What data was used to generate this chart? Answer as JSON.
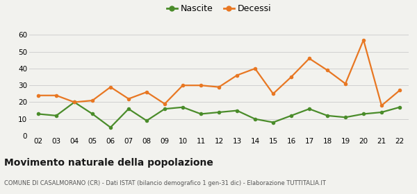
{
  "years": [
    "02",
    "03",
    "04",
    "05",
    "06",
    "07",
    "08",
    "09",
    "10",
    "11",
    "12",
    "13",
    "14",
    "15",
    "16",
    "17",
    "18",
    "19",
    "20",
    "21",
    "22"
  ],
  "nascite": [
    13,
    12,
    20,
    13,
    5,
    16,
    9,
    16,
    17,
    13,
    14,
    15,
    10,
    8,
    12,
    16,
    12,
    11,
    13,
    14,
    17
  ],
  "decessi": [
    24,
    24,
    20,
    21,
    29,
    22,
    26,
    19,
    30,
    30,
    29,
    36,
    40,
    25,
    35,
    46,
    39,
    31,
    57,
    18,
    27
  ],
  "nascite_color": "#4a8c2a",
  "decessi_color": "#e87722",
  "bg_color": "#f2f2ee",
  "grid_color": "#d0d0d0",
  "ylim": [
    0,
    60
  ],
  "yticks": [
    0,
    10,
    20,
    30,
    40,
    50,
    60
  ],
  "title": "Movimento naturale della popolazione",
  "subtitle": "COMUNE DI CASALMORANO (CR) - Dati ISTAT (bilancio demografico 1 gen-31 dic) - Elaborazione TUTTITALIA.IT",
  "legend_nascite": "Nascite",
  "legend_decessi": "Decessi",
  "marker_size": 4,
  "line_width": 1.6
}
